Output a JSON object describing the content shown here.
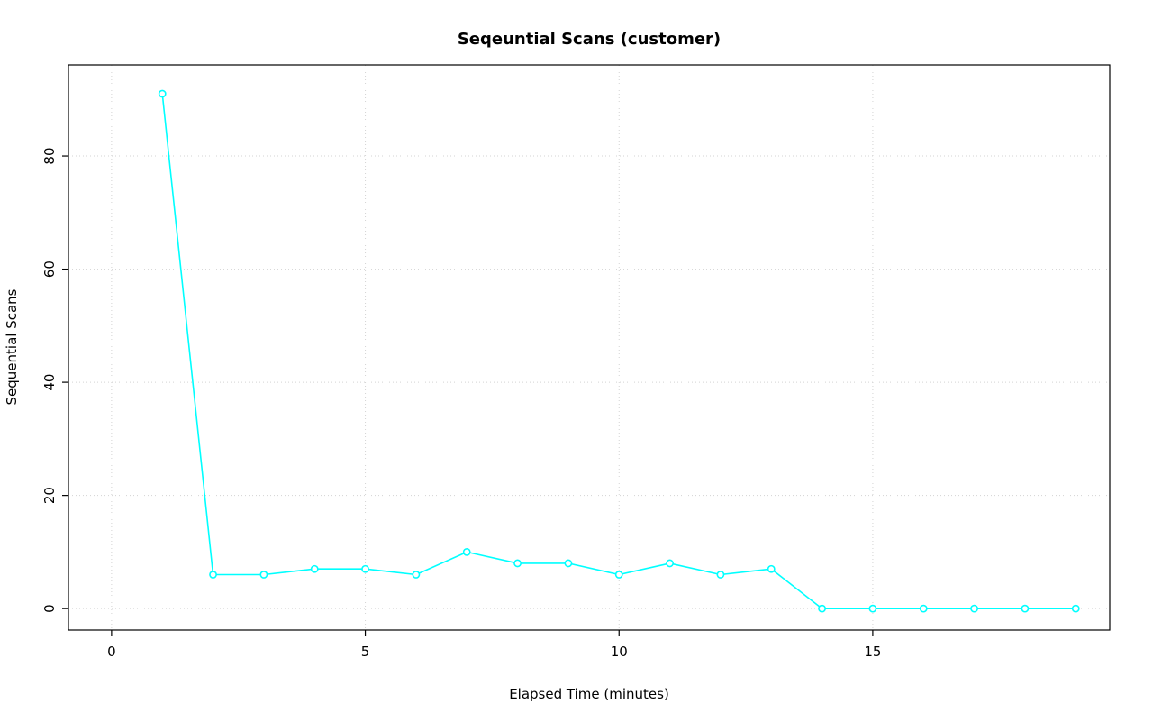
{
  "chart_data": {
    "type": "line",
    "title": "Seqeuntial Scans (customer)",
    "xlabel": "Elapsed Time (minutes)",
    "ylabel": "Sequential Scans",
    "x": [
      1,
      2,
      3,
      4,
      5,
      6,
      7,
      8,
      9,
      10,
      11,
      12,
      13,
      14,
      15,
      16,
      17,
      18,
      19
    ],
    "y": [
      91,
      6,
      6,
      7,
      7,
      6,
      10,
      8,
      8,
      6,
      8,
      6,
      7,
      0,
      0,
      0,
      0,
      0,
      0
    ],
    "xticks": [
      0,
      5,
      10,
      15
    ],
    "yticks": [
      0,
      20,
      40,
      60,
      80
    ],
    "xlim": [
      -0.85,
      19.67
    ],
    "ylim": [
      -3.8,
      96.1
    ],
    "grid": true,
    "legend": "none",
    "marker": "open-circle",
    "line_color": "#00FFFF",
    "grid_color": "#d3d3d3",
    "axis_color": "#000000"
  }
}
